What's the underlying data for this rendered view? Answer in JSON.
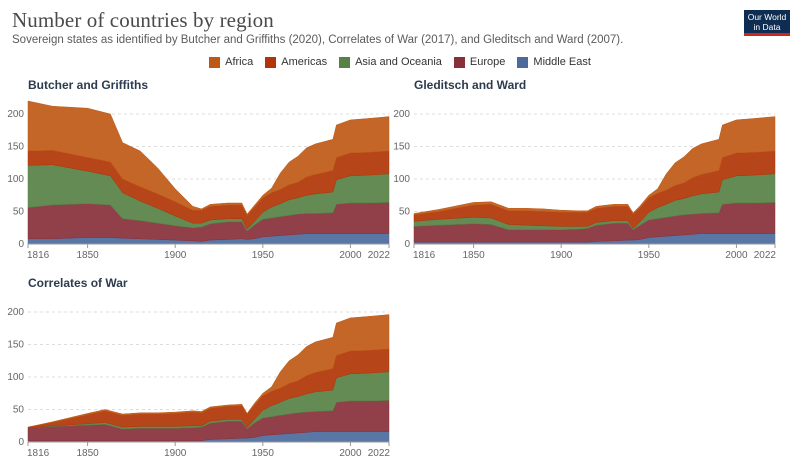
{
  "title": "Number of countries by region",
  "subtitle": "Sovereign states as identified by Butcher and Griffiths (2020), Correlates of War (2017), and Gleditsch and Ward (2007).",
  "logo": {
    "line1": "Our World",
    "line2": "in Data"
  },
  "colors": {
    "Middle East": "#4c6a9c",
    "Europe": "#883039",
    "Asia and Oceania": "#578145",
    "Americas": "#b13507",
    "Africa": "#a2559c",
    "Africa_fill": "#be5915",
    "grid": "#dddddd"
  },
  "legend": [
    "Africa",
    "Americas",
    "Asia and Oceania",
    "Europe",
    "Middle East"
  ],
  "chart_data": [
    {
      "type": "area",
      "stacked": true,
      "title": "Butcher and Griffiths",
      "xlim": [
        1816,
        2022
      ],
      "ylim": [
        0,
        200
      ],
      "xticks": [
        "1816",
        "1850",
        "1900",
        "1950",
        "2000",
        "2022"
      ],
      "yticks": [
        "0",
        "50",
        "100",
        "150",
        "200"
      ],
      "x": [
        1816,
        1830,
        1850,
        1863,
        1870,
        1880,
        1890,
        1900,
        1910,
        1915,
        1920,
        1930,
        1938,
        1941,
        1945,
        1950,
        1955,
        1960,
        1965,
        1970,
        1975,
        1980,
        1990,
        1992,
        2000,
        2010,
        2022
      ],
      "series": [
        {
          "name": "Middle East",
          "values": [
            8,
            8,
            10,
            10,
            9,
            8,
            7,
            6,
            5,
            4,
            6,
            7,
            8,
            7,
            8,
            11,
            12,
            13,
            14,
            15,
            16,
            16,
            16,
            16,
            16,
            16,
            16
          ]
        },
        {
          "name": "Europe",
          "values": [
            48,
            52,
            52,
            50,
            30,
            28,
            25,
            22,
            20,
            22,
            25,
            27,
            26,
            13,
            21,
            27,
            28,
            29,
            30,
            31,
            31,
            31,
            32,
            45,
            47,
            47,
            48
          ]
        },
        {
          "name": "Asia and Oceania",
          "values": [
            65,
            62,
            50,
            45,
            40,
            30,
            23,
            15,
            7,
            6,
            6,
            5,
            5,
            3,
            5,
            11,
            17,
            20,
            24,
            25,
            28,
            30,
            32,
            38,
            42,
            43,
            44
          ]
        },
        {
          "name": "Americas",
          "values": [
            22,
            22,
            21,
            21,
            21,
            22,
            22,
            22,
            20,
            20,
            21,
            21,
            21,
            21,
            22,
            22,
            22,
            22,
            23,
            24,
            28,
            30,
            33,
            34,
            35,
            35,
            35
          ]
        },
        {
          "name": "Africa",
          "values": [
            77,
            68,
            76,
            74,
            56,
            55,
            40,
            20,
            6,
            2,
            3,
            3,
            3,
            2,
            3,
            4,
            7,
            25,
            35,
            40,
            45,
            47,
            48,
            50,
            51,
            52,
            53
          ]
        }
      ]
    },
    {
      "type": "area",
      "stacked": true,
      "title": "Gleditsch and Ward",
      "xlim": [
        1816,
        2022
      ],
      "ylim": [
        0,
        200
      ],
      "xticks": [
        "1816",
        "1850",
        "1900",
        "1950",
        "2000",
        "2022"
      ],
      "yticks": [
        "0",
        "50",
        "100",
        "150",
        "200"
      ],
      "x": [
        1816,
        1830,
        1850,
        1860,
        1870,
        1880,
        1890,
        1900,
        1910,
        1915,
        1920,
        1930,
        1938,
        1941,
        1945,
        1950,
        1955,
        1960,
        1965,
        1970,
        1975,
        1980,
        1990,
        1992,
        2000,
        2010,
        2022
      ],
      "series": [
        {
          "name": "Middle East",
          "values": [
            3,
            3,
            3,
            3,
            3,
            3,
            3,
            3,
            3,
            3,
            4,
            5,
            6,
            6,
            7,
            10,
            11,
            12,
            13,
            14,
            15,
            16,
            16,
            16,
            16,
            16,
            16
          ]
        },
        {
          "name": "Europe",
          "values": [
            24,
            26,
            28,
            27,
            19,
            19,
            19,
            19,
            20,
            21,
            25,
            27,
            26,
            16,
            22,
            27,
            28,
            29,
            30,
            31,
            31,
            31,
            32,
            45,
            47,
            47,
            48
          ]
        },
        {
          "name": "Asia and Oceania",
          "values": [
            8,
            9,
            10,
            10,
            8,
            7,
            6,
            5,
            4,
            3,
            4,
            4,
            4,
            2,
            5,
            12,
            17,
            20,
            24,
            25,
            28,
            30,
            32,
            38,
            42,
            43,
            44
          ]
        },
        {
          "name": "Americas",
          "values": [
            10,
            12,
            19,
            21,
            21,
            22,
            22,
            22,
            22,
            22,
            22,
            22,
            22,
            22,
            22,
            22,
            22,
            22,
            23,
            24,
            28,
            30,
            33,
            34,
            35,
            35,
            35
          ]
        },
        {
          "name": "Africa",
          "values": [
            2,
            3,
            4,
            4,
            4,
            4,
            4,
            3,
            2,
            2,
            3,
            3,
            3,
            2,
            3,
            4,
            7,
            25,
            35,
            40,
            45,
            47,
            48,
            50,
            51,
            52,
            53
          ]
        }
      ]
    },
    {
      "type": "area",
      "stacked": true,
      "title": "Correlates of War",
      "xlim": [
        1816,
        2022
      ],
      "ylim": [
        0,
        200
      ],
      "xticks": [
        "1816",
        "1850",
        "1900",
        "1950",
        "2000",
        "2022"
      ],
      "yticks": [
        "0",
        "50",
        "100",
        "150",
        "200"
      ],
      "x": [
        1816,
        1830,
        1850,
        1860,
        1870,
        1880,
        1890,
        1900,
        1910,
        1915,
        1920,
        1930,
        1938,
        1941,
        1945,
        1950,
        1955,
        1960,
        1965,
        1970,
        1975,
        1980,
        1990,
        1992,
        2000,
        2010,
        2022
      ],
      "series": [
        {
          "name": "Middle East",
          "values": [
            2,
            2,
            2,
            2,
            2,
            2,
            2,
            2,
            2,
            2,
            4,
            5,
            6,
            6,
            7,
            10,
            11,
            12,
            13,
            14,
            15,
            16,
            16,
            16,
            16,
            16,
            16
          ]
        },
        {
          "name": "Europe",
          "values": [
            20,
            22,
            24,
            25,
            18,
            19,
            19,
            19,
            20,
            21,
            25,
            27,
            26,
            14,
            22,
            27,
            28,
            29,
            30,
            31,
            31,
            31,
            32,
            45,
            47,
            47,
            48
          ]
        },
        {
          "name": "Asia and Oceania",
          "values": [
            0,
            1,
            2,
            3,
            3,
            3,
            3,
            3,
            3,
            2,
            3,
            3,
            3,
            2,
            5,
            12,
            17,
            20,
            24,
            25,
            28,
            30,
            32,
            38,
            42,
            43,
            44
          ]
        },
        {
          "name": "Americas",
          "values": [
            1,
            5,
            14,
            18,
            18,
            19,
            19,
            20,
            21,
            20,
            20,
            20,
            21,
            21,
            22,
            22,
            22,
            22,
            23,
            24,
            28,
            30,
            33,
            34,
            35,
            35,
            35
          ]
        },
        {
          "name": "Africa",
          "values": [
            0,
            1,
            2,
            2,
            2,
            2,
            2,
            2,
            2,
            2,
            2,
            2,
            2,
            1,
            3,
            4,
            7,
            25,
            35,
            40,
            45,
            47,
            48,
            50,
            51,
            52,
            53
          ]
        }
      ]
    }
  ]
}
